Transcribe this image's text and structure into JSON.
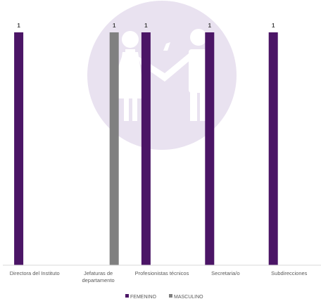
{
  "chart_data": {
    "type": "bar",
    "title": "",
    "xlabel": "",
    "ylabel": "",
    "ylim": [
      0,
      1
    ],
    "grid": false,
    "legend_position": "bottom-center",
    "categories": [
      [
        "Directora del Instituto"
      ],
      [
        "Jefaturas de",
        "departamento"
      ],
      [
        "Profesionistas técnicos"
      ],
      [
        "Secretaria/o"
      ],
      [
        "Subdirecciones"
      ]
    ],
    "series": [
      {
        "name": "FEMENINO",
        "color": "#4b1566",
        "values": [
          1,
          null,
          1,
          1,
          1
        ]
      },
      {
        "name": "MASCULINO",
        "color": "#808080",
        "values": [
          null,
          1,
          null,
          null,
          null
        ]
      }
    ],
    "data_labels": [
      "1",
      "1",
      "1",
      "1",
      "1"
    ],
    "watermark": {
      "icon": "women-men-restroom-icon",
      "color": "#e9e2f0"
    }
  }
}
